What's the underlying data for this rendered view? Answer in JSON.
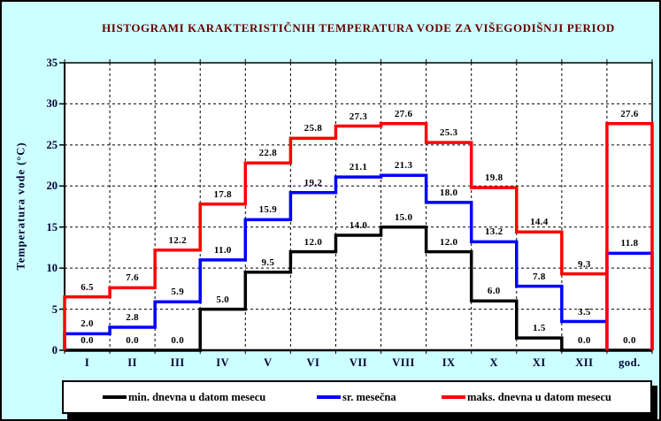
{
  "frame": {
    "background": "#ccffff",
    "border": "#000000"
  },
  "colors": {
    "title_text": "#660000",
    "axis_text": "#000033",
    "plot_background": "#ffffff",
    "grid": "#000000"
  },
  "chart_data": {
    "type": "line",
    "subtype": "step-histogram",
    "title": "HISTOGRAMI KARAKTERISTIČNIH TEMPERATURA VODE ZA VIŠEGODIŠNJI PERIOD",
    "xlabel": "",
    "ylabel": "Temperatura vode (°C)",
    "ylim": [
      0,
      35
    ],
    "y_ticks": [
      0,
      5,
      10,
      15,
      20,
      25,
      30,
      35
    ],
    "grid": "dashed",
    "legend_position": "bottom",
    "categories": [
      "I",
      "II",
      "III",
      "IV",
      "V",
      "VI",
      "VII",
      "VIII",
      "IX",
      "X",
      "XI",
      "XII",
      "god."
    ],
    "series": [
      {
        "name": "min. dnevna u datom mesecu",
        "color": "#000000",
        "values": [
          0.0,
          0.0,
          0.0,
          5.0,
          9.5,
          12.0,
          14.0,
          15.0,
          12.0,
          6.0,
          1.5,
          0.0,
          0.0
        ]
      },
      {
        "name": "sr. mesečna",
        "color": "#0000ff",
        "values": [
          2.0,
          2.8,
          5.9,
          11.0,
          15.9,
          19.2,
          21.1,
          21.3,
          18.0,
          13.2,
          7.8,
          3.5,
          11.8
        ]
      },
      {
        "name": "maks. dnevna u datom mesecu",
        "color": "#ff0000",
        "values": [
          6.5,
          7.6,
          12.2,
          17.8,
          22.8,
          25.8,
          27.3,
          27.6,
          25.3,
          19.8,
          14.4,
          9.3,
          27.6
        ]
      }
    ]
  }
}
